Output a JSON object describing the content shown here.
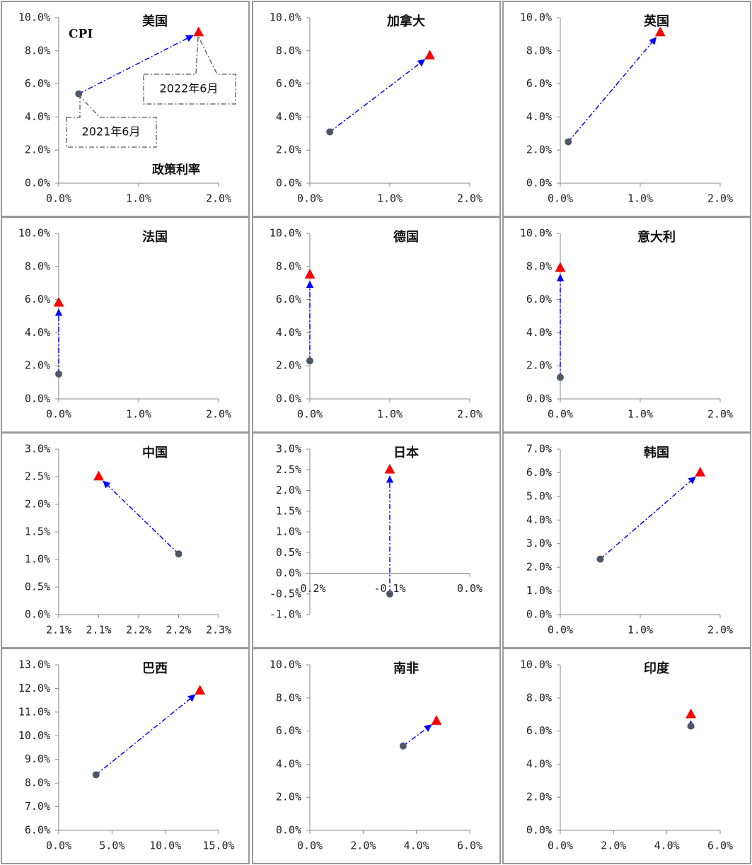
{
  "chart_data": [
    {
      "type": "scatter",
      "title": "美国",
      "x": [
        0.25,
        1.75
      ],
      "values": [
        5.4,
        9.1
      ],
      "marker_colors": [
        "#4d5766",
        "#ff0000"
      ],
      "line_color": "#0000ff",
      "xlim": [
        0,
        2
      ],
      "xticks": [
        {
          "value": 0,
          "label": "0.0%"
        },
        {
          "value": 1,
          "label": "1.0%"
        },
        {
          "value": 2,
          "label": "2.0%"
        }
      ],
      "ylim": [
        0,
        10
      ],
      "yticks": [
        {
          "value": 0,
          "label": "0.0%"
        },
        {
          "value": 2,
          "label": "2.0%"
        },
        {
          "value": 4,
          "label": "4.0%"
        },
        {
          "value": 6,
          "label": "6.0%"
        },
        {
          "value": 8,
          "label": "8.0%"
        },
        {
          "value": 10,
          "label": "10.0%"
        }
      ],
      "annotations": [
        {
          "text": "CPI"
        },
        {
          "text": "政策利率"
        },
        {
          "text": "2021年6月"
        },
        {
          "text": "2022年6月",
          "color": "#ff0000"
        }
      ]
    },
    {
      "type": "scatter",
      "title": "加拿大",
      "x": [
        0.25,
        1.5
      ],
      "values": [
        3.1,
        7.7
      ],
      "marker_colors": [
        "#4d5766",
        "#ff0000"
      ],
      "line_color": "#0000ff",
      "xlim": [
        0,
        2
      ],
      "xticks": [
        {
          "value": 0,
          "label": "0.0%"
        },
        {
          "value": 1,
          "label": "1.0%"
        },
        {
          "value": 2,
          "label": "2.0%"
        }
      ],
      "ylim": [
        0,
        10
      ],
      "yticks": [
        {
          "value": 0,
          "label": "0.0%"
        },
        {
          "value": 2,
          "label": "2.0%"
        },
        {
          "value": 4,
          "label": "4.0%"
        },
        {
          "value": 6,
          "label": "6.0%"
        },
        {
          "value": 8,
          "label": "8.0%"
        },
        {
          "value": 10,
          "label": "10.0%"
        }
      ]
    },
    {
      "type": "scatter",
      "title": "英国",
      "x": [
        0.1,
        1.25
      ],
      "values": [
        2.5,
        9.1
      ],
      "marker_colors": [
        "#4d5766",
        "#ff0000"
      ],
      "line_color": "#0000ff",
      "xlim": [
        0,
        2
      ],
      "xticks": [
        {
          "value": 0,
          "label": "0.0%"
        },
        {
          "value": 1,
          "label": "1.0%"
        },
        {
          "value": 2,
          "label": "2.0%"
        }
      ],
      "ylim": [
        0,
        10
      ],
      "yticks": [
        {
          "value": 0,
          "label": "0.0%"
        },
        {
          "value": 2,
          "label": "2.0%"
        },
        {
          "value": 4,
          "label": "4.0%"
        },
        {
          "value": 6,
          "label": "6.0%"
        },
        {
          "value": 8,
          "label": "8.0%"
        },
        {
          "value": 10,
          "label": "10.0%"
        }
      ]
    },
    {
      "type": "scatter",
      "title": "法国",
      "x": [
        0,
        0
      ],
      "values": [
        1.5,
        5.8
      ],
      "marker_colors": [
        "#4d5766",
        "#ff0000"
      ],
      "line_color": "#0000ff",
      "xlim": [
        0,
        2
      ],
      "xticks": [
        {
          "value": 0,
          "label": "0.0%"
        },
        {
          "value": 1,
          "label": "1.0%"
        },
        {
          "value": 2,
          "label": "2.0%"
        }
      ],
      "ylim": [
        0,
        10
      ],
      "yticks": [
        {
          "value": 0,
          "label": "0.0%"
        },
        {
          "value": 2,
          "label": "2.0%"
        },
        {
          "value": 4,
          "label": "4.0%"
        },
        {
          "value": 6,
          "label": "6.0%"
        },
        {
          "value": 8,
          "label": "8.0%"
        },
        {
          "value": 10,
          "label": "10.0%"
        }
      ]
    },
    {
      "type": "scatter",
      "title": "德国",
      "x": [
        0,
        0
      ],
      "values": [
        2.3,
        7.5
      ],
      "marker_colors": [
        "#4d5766",
        "#ff0000"
      ],
      "line_color": "#0000ff",
      "xlim": [
        0,
        2
      ],
      "xticks": [
        {
          "value": 0,
          "label": "0.0%"
        },
        {
          "value": 1,
          "label": "1.0%"
        },
        {
          "value": 2,
          "label": "2.0%"
        }
      ],
      "ylim": [
        0,
        10
      ],
      "yticks": [
        {
          "value": 0,
          "label": "0.0%"
        },
        {
          "value": 2,
          "label": "2.0%"
        },
        {
          "value": 4,
          "label": "4.0%"
        },
        {
          "value": 6,
          "label": "6.0%"
        },
        {
          "value": 8,
          "label": "8.0%"
        },
        {
          "value": 10,
          "label": "10.0%"
        }
      ]
    },
    {
      "type": "scatter",
      "title": "意大利",
      "x": [
        0,
        0
      ],
      "values": [
        1.3,
        7.9
      ],
      "marker_colors": [
        "#4d5766",
        "#ff0000"
      ],
      "line_color": "#0000ff",
      "xlim": [
        0,
        2
      ],
      "xticks": [
        {
          "value": 0,
          "label": "0.0%"
        },
        {
          "value": 1,
          "label": "1.0%"
        },
        {
          "value": 2,
          "label": "2.0%"
        }
      ],
      "ylim": [
        0,
        10
      ],
      "yticks": [
        {
          "value": 0,
          "label": "0.0%"
        },
        {
          "value": 2,
          "label": "2.0%"
        },
        {
          "value": 4,
          "label": "4.0%"
        },
        {
          "value": 6,
          "label": "6.0%"
        },
        {
          "value": 8,
          "label": "8.0%"
        },
        {
          "value": 10,
          "label": "10.0%"
        }
      ]
    },
    {
      "type": "scatter",
      "title": "中国",
      "x": [
        2.2,
        2.1
      ],
      "values": [
        1.1,
        2.5
      ],
      "marker_colors": [
        "#4d5766",
        "#ff0000"
      ],
      "line_color": "#0000ff",
      "xlim": [
        2.05,
        2.25
      ],
      "xticks": [
        {
          "value": 2.05,
          "label": "2.1%"
        },
        {
          "value": 2.1,
          "label": "2.1%"
        },
        {
          "value": 2.15,
          "label": "2.2%"
        },
        {
          "value": 2.2,
          "label": "2.2%"
        },
        {
          "value": 2.25,
          "label": "2.3%"
        }
      ],
      "ylim": [
        0,
        3
      ],
      "yticks": [
        {
          "value": 0,
          "label": "0.0%"
        },
        {
          "value": 0.5,
          "label": "0.5%"
        },
        {
          "value": 1,
          "label": "1.0%"
        },
        {
          "value": 1.5,
          "label": "1.5%"
        },
        {
          "value": 2,
          "label": "2.0%"
        },
        {
          "value": 2.5,
          "label": "2.5%"
        },
        {
          "value": 3,
          "label": "3.0%"
        }
      ]
    },
    {
      "type": "scatter",
      "title": "日本",
      "x": [
        -0.1,
        -0.1
      ],
      "values": [
        -0.5,
        2.5
      ],
      "marker_colors": [
        "#4d5766",
        "#ff0000"
      ],
      "line_color": "#0000ff",
      "xlim": [
        -0.2,
        0
      ],
      "xticks": [
        {
          "value": -0.2,
          "label": "-0.2%"
        },
        {
          "value": -0.1,
          "label": "-0.1%"
        },
        {
          "value": 0,
          "label": "0.0%"
        }
      ],
      "ylim": [
        -1,
        3
      ],
      "yticks": [
        {
          "value": -1,
          "label": "-1.0%"
        },
        {
          "value": -0.5,
          "label": "-0.5%"
        },
        {
          "value": 0,
          "label": "0.0%"
        },
        {
          "value": 0.5,
          "label": "0.5%"
        },
        {
          "value": 1,
          "label": "1.0%"
        },
        {
          "value": 1.5,
          "label": "1.5%"
        },
        {
          "value": 2,
          "label": "2.0%"
        },
        {
          "value": 2.5,
          "label": "2.5%"
        },
        {
          "value": 3,
          "label": "3.0%"
        }
      ]
    },
    {
      "type": "scatter",
      "title": "韩国",
      "x": [
        0.5,
        1.75
      ],
      "values": [
        2.35,
        6.0
      ],
      "marker_colors": [
        "#4d5766",
        "#ff0000"
      ],
      "line_color": "#0000ff",
      "xlim": [
        0,
        2
      ],
      "xticks": [
        {
          "value": 0,
          "label": "0.0%"
        },
        {
          "value": 1,
          "label": "1.0%"
        },
        {
          "value": 2,
          "label": "2.0%"
        }
      ],
      "ylim": [
        0,
        7
      ],
      "yticks": [
        {
          "value": 0,
          "label": "0.0%"
        },
        {
          "value": 1,
          "label": "1.0%"
        },
        {
          "value": 2,
          "label": "2.0%"
        },
        {
          "value": 3,
          "label": "3.0%"
        },
        {
          "value": 4,
          "label": "4.0%"
        },
        {
          "value": 5,
          "label": "5.0%"
        },
        {
          "value": 6,
          "label": "6.0%"
        },
        {
          "value": 7,
          "label": "7.0%"
        }
      ]
    },
    {
      "type": "scatter",
      "title": "巴西",
      "x": [
        3.5,
        13.25
      ],
      "values": [
        8.35,
        11.9
      ],
      "marker_colors": [
        "#4d5766",
        "#ff0000"
      ],
      "line_color": "#0000ff",
      "xlim": [
        0,
        15
      ],
      "xticks": [
        {
          "value": 0,
          "label": "0.0%"
        },
        {
          "value": 5,
          "label": "5.0%"
        },
        {
          "value": 10,
          "label": "10.0%"
        },
        {
          "value": 15,
          "label": "15.0%"
        }
      ],
      "ylim": [
        6,
        13
      ],
      "yticks": [
        {
          "value": 6,
          "label": "6.0%"
        },
        {
          "value": 7,
          "label": "7.0%"
        },
        {
          "value": 8,
          "label": "8.0%"
        },
        {
          "value": 9,
          "label": "9.0%"
        },
        {
          "value": 10,
          "label": "10.0%"
        },
        {
          "value": 11,
          "label": "11.0%"
        },
        {
          "value": 12,
          "label": "12.0%"
        },
        {
          "value": 13,
          "label": "13.0%"
        }
      ]
    },
    {
      "type": "scatter",
      "title": "南非",
      "x": [
        3.5,
        4.75
      ],
      "values": [
        5.1,
        6.6
      ],
      "marker_colors": [
        "#4d5766",
        "#ff0000"
      ],
      "line_color": "#0000ff",
      "xlim": [
        0,
        6
      ],
      "xticks": [
        {
          "value": 0,
          "label": "0.0%"
        },
        {
          "value": 2,
          "label": "2.0%"
        },
        {
          "value": 4,
          "label": "4.0%"
        },
        {
          "value": 6,
          "label": "6.0%"
        }
      ],
      "ylim": [
        0,
        10
      ],
      "yticks": [
        {
          "value": 0,
          "label": "0.0%"
        },
        {
          "value": 2,
          "label": "2.0%"
        },
        {
          "value": 4,
          "label": "4.0%"
        },
        {
          "value": 6,
          "label": "6.0%"
        },
        {
          "value": 8,
          "label": "8.0%"
        },
        {
          "value": 10,
          "label": "10.0%"
        }
      ]
    },
    {
      "type": "scatter",
      "title": "印度",
      "x": [
        4.9,
        4.9
      ],
      "values": [
        6.3,
        7.0
      ],
      "marker_colors": [
        "#4d5766",
        "#ff0000"
      ],
      "line_color": "#0000ff",
      "xlim": [
        0,
        6
      ],
      "xticks": [
        {
          "value": 0,
          "label": "0.0%"
        },
        {
          "value": 2,
          "label": "2.0%"
        },
        {
          "value": 4,
          "label": "4.0%"
        },
        {
          "value": 6,
          "label": "6.0%"
        }
      ],
      "ylim": [
        0,
        10
      ],
      "yticks": [
        {
          "value": 0,
          "label": "0.0%"
        },
        {
          "value": 2,
          "label": "2.0%"
        },
        {
          "value": 4,
          "label": "4.0%"
        },
        {
          "value": 6,
          "label": "6.0%"
        },
        {
          "value": 8,
          "label": "8.0%"
        },
        {
          "value": 10,
          "label": "10.0%"
        }
      ]
    }
  ]
}
